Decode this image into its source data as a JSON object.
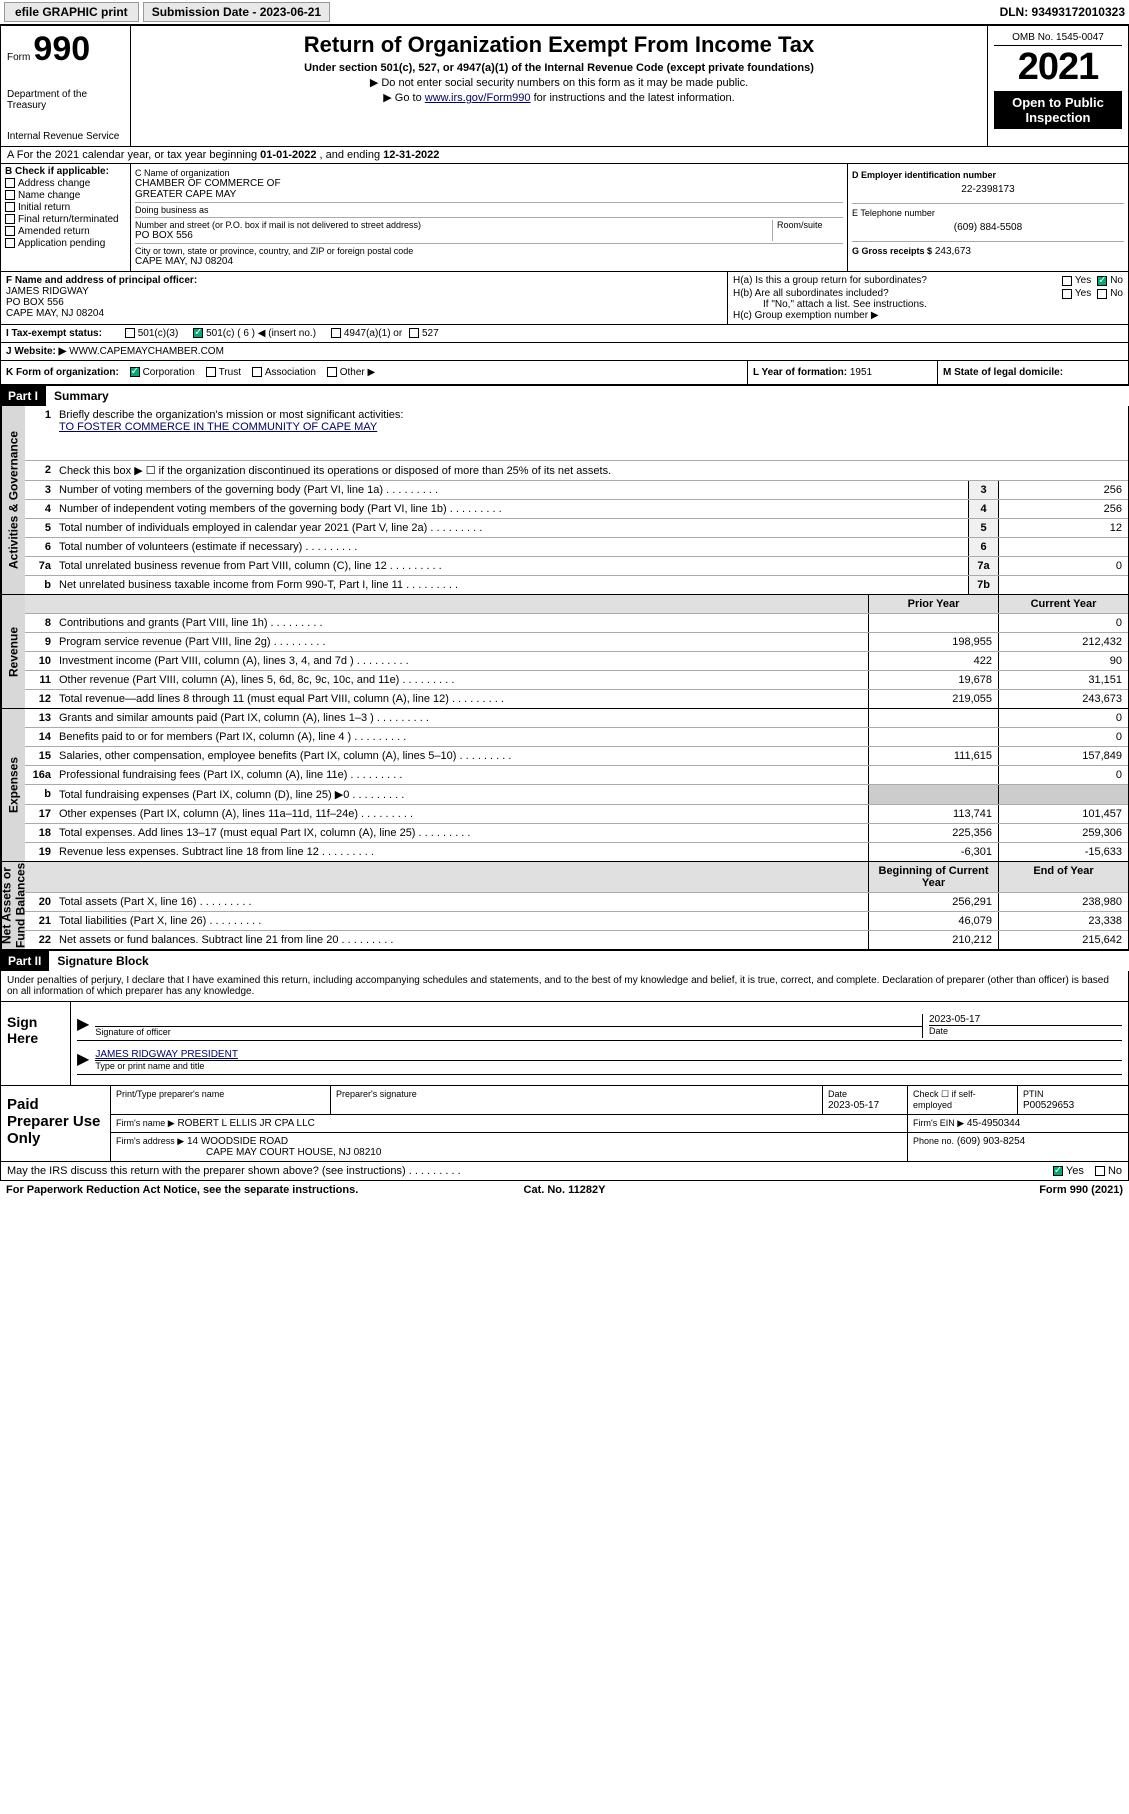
{
  "topbar": {
    "efile_label": "efile GRAPHIC print",
    "submission_label": "Submission Date - 2023-06-21",
    "dln": "DLN: 93493172010323"
  },
  "header": {
    "form_prefix": "Form",
    "form_number": "990",
    "dept": "Department of the Treasury",
    "irs": "Internal Revenue Service",
    "title": "Return of Organization Exempt From Income Tax",
    "sub1": "Under section 501(c), 527, or 4947(a)(1) of the Internal Revenue Code (except private foundations)",
    "sub2": "▶ Do not enter social security numbers on this form as it may be made public.",
    "sub3_pre": "▶ Go to ",
    "sub3_link": "www.irs.gov/Form990",
    "sub3_post": " for instructions and the latest information.",
    "omb": "OMB No. 1545-0047",
    "year": "2021",
    "otp1": "Open to Public",
    "otp2": "Inspection"
  },
  "line_a": {
    "prefix": "A For the 2021 calendar year, or tax year beginning ",
    "begin": "01-01-2022",
    "mid": " , and ending ",
    "end": "12-31-2022"
  },
  "col_b": {
    "label": "B Check if applicable:",
    "items": [
      "Address change",
      "Name change",
      "Initial return",
      "Final return/terminated",
      "Amended return",
      "Application pending"
    ]
  },
  "col_c": {
    "name_lbl": "C Name of organization",
    "name": "CHAMBER OF COMMERCE OF\nGREATER CAPE MAY",
    "dba_lbl": "Doing business as",
    "dba": "",
    "addr_lbl": "Number and street (or P.O. box if mail is not delivered to street address)",
    "room_lbl": "Room/suite",
    "addr": "PO BOX 556",
    "city_lbl": "City or town, state or province, country, and ZIP or foreign postal code",
    "city": "CAPE MAY, NJ  08204"
  },
  "col_d": {
    "ein_lbl": "D Employer identification number",
    "ein": "22-2398173",
    "tel_lbl": "E Telephone number",
    "tel": "(609) 884-5508",
    "gross_lbl": "G Gross receipts $",
    "gross": "243,673"
  },
  "col_f": {
    "lbl": "F Name and address of principal officer:",
    "name": "JAMES RIDGWAY",
    "addr1": "PO BOX 556",
    "addr2": "CAPE MAY, NJ  08204"
  },
  "col_h": {
    "ha": "H(a)  Is this a group return for subordinates?",
    "hb": "H(b)  Are all subordinates included?",
    "hb_note": "If \"No,\" attach a list. See instructions.",
    "hc": "H(c)  Group exemption number ▶",
    "yes": "Yes",
    "no": "No"
  },
  "row_i": {
    "lbl": "I   Tax-exempt status:",
    "opt1": "501(c)(3)",
    "opt2": "501(c) ( 6 ) ◀ (insert no.)",
    "opt3": "4947(a)(1) or",
    "opt4": "527"
  },
  "row_j": {
    "lbl": "J   Website: ▶",
    "val": "WWW.CAPEMAYCHAMBER.COM"
  },
  "row_k": {
    "lbl": "K Form of organization:",
    "opts": [
      "Corporation",
      "Trust",
      "Association",
      "Other ▶"
    ]
  },
  "row_l": {
    "lbl": "L Year of formation: ",
    "val": "1951"
  },
  "row_m": {
    "lbl": "M State of legal domicile:",
    "val": ""
  },
  "part1": {
    "hdr": "Part I",
    "title": "Summary"
  },
  "summary": {
    "gov_label": "Activities & Governance",
    "rev_label": "Revenue",
    "exp_label": "Expenses",
    "nab_label": "Net Assets or\nFund Balances",
    "prior_hdr": "Prior Year",
    "current_hdr": "Current Year",
    "begin_hdr": "Beginning of Current Year",
    "end_hdr": "End of Year",
    "r1_desc": "Briefly describe the organization's mission or most significant activities:",
    "r1_mission": "TO FOSTER COMMERCE IN THE COMMUNITY OF CAPE MAY",
    "r2_desc": "Check this box ▶ ☐  if the organization discontinued its operations or disposed of more than 25% of its net assets.",
    "rows_gov": [
      {
        "n": "3",
        "d": "Number of voting members of the governing body (Part VI, line 1a)",
        "b": "3",
        "v": "256"
      },
      {
        "n": "4",
        "d": "Number of independent voting members of the governing body (Part VI, line 1b)",
        "b": "4",
        "v": "256"
      },
      {
        "n": "5",
        "d": "Total number of individuals employed in calendar year 2021 (Part V, line 2a)",
        "b": "5",
        "v": "12"
      },
      {
        "n": "6",
        "d": "Total number of volunteers (estimate if necessary)",
        "b": "6",
        "v": ""
      },
      {
        "n": "7a",
        "d": "Total unrelated business revenue from Part VIII, column (C), line 12",
        "b": "7a",
        "v": "0"
      },
      {
        "n": "b",
        "d": "Net unrelated business taxable income from Form 990-T, Part I, line 11",
        "b": "7b",
        "v": ""
      }
    ],
    "rows_rev": [
      {
        "n": "8",
        "d": "Contributions and grants (Part VIII, line 1h)",
        "p": "",
        "c": "0"
      },
      {
        "n": "9",
        "d": "Program service revenue (Part VIII, line 2g)",
        "p": "198,955",
        "c": "212,432"
      },
      {
        "n": "10",
        "d": "Investment income (Part VIII, column (A), lines 3, 4, and 7d )",
        "p": "422",
        "c": "90"
      },
      {
        "n": "11",
        "d": "Other revenue (Part VIII, column (A), lines 5, 6d, 8c, 9c, 10c, and 11e)",
        "p": "19,678",
        "c": "31,151"
      },
      {
        "n": "12",
        "d": "Total revenue—add lines 8 through 11 (must equal Part VIII, column (A), line 12)",
        "p": "219,055",
        "c": "243,673"
      }
    ],
    "rows_exp": [
      {
        "n": "13",
        "d": "Grants and similar amounts paid (Part IX, column (A), lines 1–3 )",
        "p": "",
        "c": "0"
      },
      {
        "n": "14",
        "d": "Benefits paid to or for members (Part IX, column (A), line 4 )",
        "p": "",
        "c": "0"
      },
      {
        "n": "15",
        "d": "Salaries, other compensation, employee benefits (Part IX, column (A), lines 5–10)",
        "p": "111,615",
        "c": "157,849"
      },
      {
        "n": "16a",
        "d": "Professional fundraising fees (Part IX, column (A), line 11e)",
        "p": "",
        "c": "0"
      },
      {
        "n": "b",
        "d": "Total fundraising expenses (Part IX, column (D), line 25) ▶0",
        "p": "shade",
        "c": "shade"
      },
      {
        "n": "17",
        "d": "Other expenses (Part IX, column (A), lines 11a–11d, 11f–24e)",
        "p": "113,741",
        "c": "101,457"
      },
      {
        "n": "18",
        "d": "Total expenses. Add lines 13–17 (must equal Part IX, column (A), line 25)",
        "p": "225,356",
        "c": "259,306"
      },
      {
        "n": "19",
        "d": "Revenue less expenses. Subtract line 18 from line 12",
        "p": "-6,301",
        "c": "-15,633"
      }
    ],
    "rows_nab": [
      {
        "n": "20",
        "d": "Total assets (Part X, line 16)",
        "p": "256,291",
        "c": "238,980"
      },
      {
        "n": "21",
        "d": "Total liabilities (Part X, line 26)",
        "p": "46,079",
        "c": "23,338"
      },
      {
        "n": "22",
        "d": "Net assets or fund balances. Subtract line 21 from line 20",
        "p": "210,212",
        "c": "215,642"
      }
    ]
  },
  "part2": {
    "hdr": "Part II",
    "title": "Signature Block"
  },
  "sig": {
    "decl": "Under penalties of perjury, I declare that I have examined this return, including accompanying schedules and statements, and to the best of my knowledge and belief, it is true, correct, and complete. Declaration of preparer (other than officer) is based on all information of which preparer has any knowledge.",
    "sign_here": "Sign Here",
    "sig_lbl": "Signature of officer",
    "date_lbl": "Date",
    "date_val": "2023-05-17",
    "name_lbl": "Type or print name and title",
    "name_val": "JAMES RIDGWAY PRESIDENT",
    "paid": "Paid Preparer Use Only",
    "pp_name_lbl": "Print/Type preparer's name",
    "pp_sig_lbl": "Preparer's signature",
    "pp_date_lbl": "Date",
    "pp_date": "2023-05-17",
    "pp_check_lbl": "Check ☐ if self-employed",
    "ptin_lbl": "PTIN",
    "ptin": "P00529653",
    "firm_name_lbl": "Firm's name    ▶",
    "firm_name": "ROBERT L ELLIS JR CPA LLC",
    "firm_ein_lbl": "Firm's EIN ▶",
    "firm_ein": "45-4950344",
    "firm_addr_lbl": "Firm's address ▶",
    "firm_addr1": "14 WOODSIDE ROAD",
    "firm_addr2": "CAPE MAY COURT HOUSE, NJ  08210",
    "phone_lbl": "Phone no.",
    "phone": "(609) 903-8254"
  },
  "footer": {
    "may": "May the IRS discuss this return with the preparer shown above? (see instructions)",
    "yes": "Yes",
    "no": "No",
    "pra": "For Paperwork Reduction Act Notice, see the separate instructions.",
    "cat": "Cat. No. 11282Y",
    "form": "Form 990 (2021)"
  }
}
